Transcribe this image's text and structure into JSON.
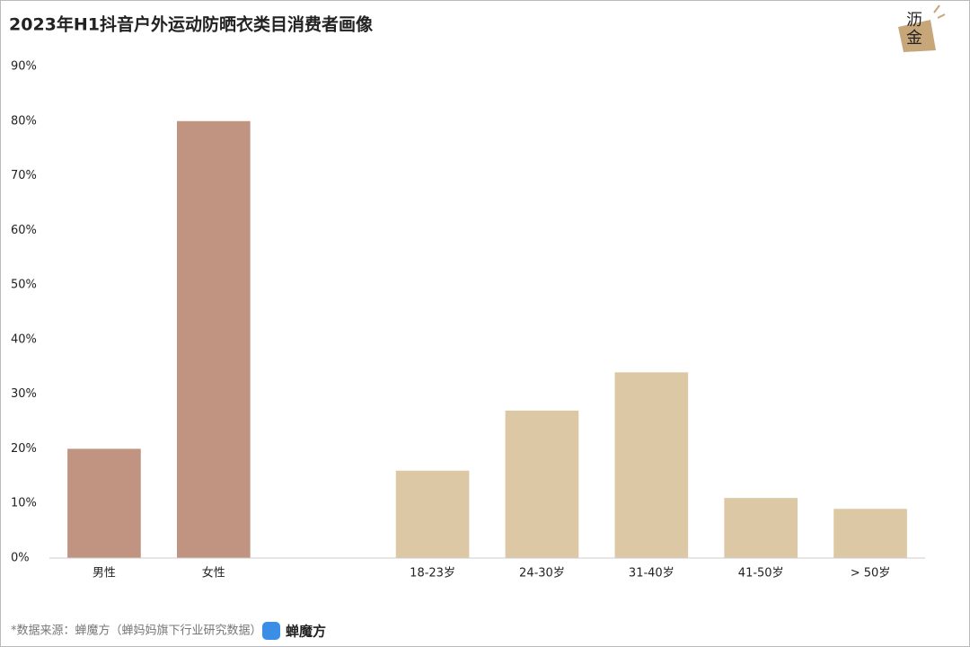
{
  "chart_data": {
    "type": "bar",
    "title": "2023年H1抖音户外运动防晒衣类目消费者画像",
    "categories": [
      "男性",
      "女性",
      null,
      "18-23岁",
      "24-30岁",
      "31-40岁",
      "41-50岁",
      "> 50岁"
    ],
    "values": [
      20,
      80,
      null,
      16,
      27,
      34,
      11,
      9
    ],
    "colors": [
      "#c09480",
      "#c09480",
      null,
      "#dcc8a4",
      "#dcc8a4",
      "#dcc8a4",
      "#dcc8a4",
      "#dcc8a4"
    ],
    "ylim": [
      0,
      90
    ],
    "yticks": [
      {
        "value": 0,
        "label": "0%"
      },
      {
        "value": 10,
        "label": "10%"
      },
      {
        "value": 20,
        "label": "20%"
      },
      {
        "value": 30,
        "label": "30%"
      },
      {
        "value": 40,
        "label": "40%"
      },
      {
        "value": 50,
        "label": "50%"
      },
      {
        "value": 60,
        "label": "60%"
      },
      {
        "value": 70,
        "label": "70%"
      },
      {
        "value": 80,
        "label": "80%"
      },
      {
        "value": 90,
        "label": "90%"
      }
    ],
    "grid": false
  },
  "watermark": "沥金",
  "footer": {
    "source": "*数据来源：蝉魔方（蝉妈妈旗下行业研究数据）",
    "brand": "蝉魔方"
  }
}
